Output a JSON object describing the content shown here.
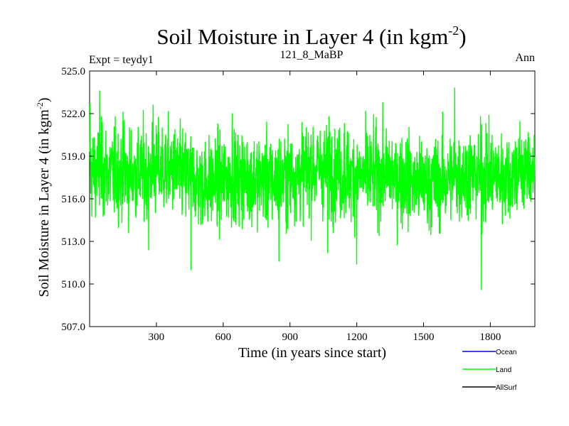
{
  "chart_data": {
    "type": "line",
    "title_main": "Soil Moisture in Layer 4 (in kgm",
    "title_sup": "-2",
    "title_close": ")",
    "subtitle_left": "Expt = teydy1",
    "subtitle_center": "121_8_MaBP",
    "subtitle_right": "Ann",
    "xlabel": "Time (in years since start)",
    "ylabel_main": "Soil Moisture in Layer 4 (in kgm",
    "ylabel_sup": "-2",
    "ylabel_close": ")",
    "xlim": [
      0,
      2000
    ],
    "ylim": [
      507.0,
      525.0
    ],
    "xticks": [
      300,
      600,
      900,
      1200,
      1500,
      1800
    ],
    "xtick_labels": [
      "300",
      "600",
      "900",
      "1200",
      "1500",
      "1800"
    ],
    "yticks": [
      507.0,
      510.0,
      513.0,
      516.0,
      519.0,
      522.0,
      525.0
    ],
    "ytick_labels": [
      "507.0",
      "510.0",
      "513.0",
      "516.0",
      "519.0",
      "522.0",
      "525.0"
    ],
    "grid": false,
    "series": [
      {
        "name": "Land",
        "color": "#00ff00",
        "mean": 517.6,
        "amplitude": 1.6,
        "n_points": 2000,
        "notable_points": [
          {
            "x": 2,
            "y": 522.7
          },
          {
            "x": 45,
            "y": 523.6
          },
          {
            "x": 155,
            "y": 521.5
          },
          {
            "x": 265,
            "y": 512.4
          },
          {
            "x": 285,
            "y": 522.6
          },
          {
            "x": 455,
            "y": 511.0
          },
          {
            "x": 640,
            "y": 522.0
          },
          {
            "x": 850,
            "y": 511.6
          },
          {
            "x": 1070,
            "y": 512.2
          },
          {
            "x": 1145,
            "y": 521.3
          },
          {
            "x": 1200,
            "y": 511.4
          },
          {
            "x": 1640,
            "y": 523.8
          },
          {
            "x": 1760,
            "y": 509.6
          },
          {
            "x": 1780,
            "y": 521.3
          }
        ]
      }
    ],
    "legend": [
      {
        "name": "Ocean",
        "color": "#0000ff"
      },
      {
        "name": "Land",
        "color": "#00ff00"
      },
      {
        "name": "AllSurf",
        "color": "#000000"
      }
    ],
    "legend_position": "bottom-right"
  }
}
